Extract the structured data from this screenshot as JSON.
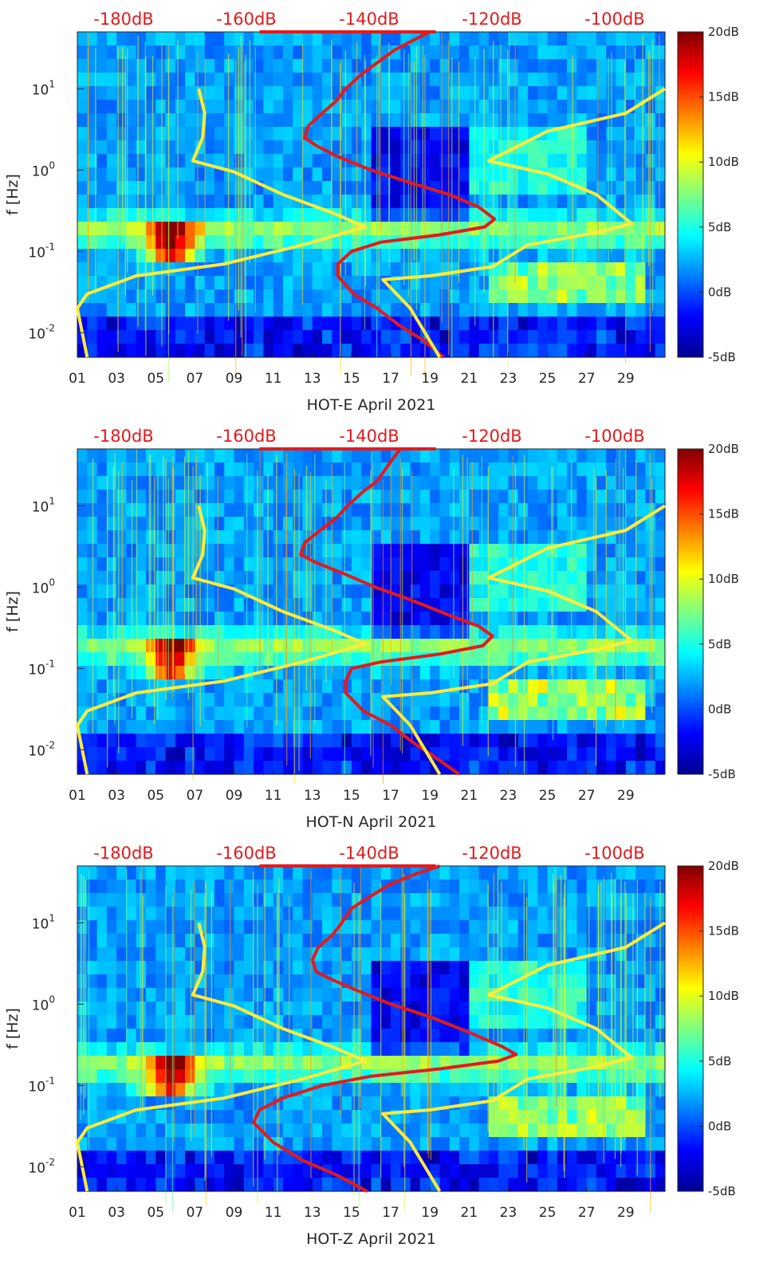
{
  "figure": {
    "colorbar": {
      "colormap": "jet",
      "range": [
        -5,
        20
      ],
      "ticks": [
        {
          "value": 20,
          "label": "20dB"
        },
        {
          "value": 15,
          "label": "15dB"
        },
        {
          "value": 10,
          "label": "10dB"
        },
        {
          "value": 5,
          "label": "5dB"
        },
        {
          "value": 0,
          "label": "0dB"
        },
        {
          "value": -5,
          "label": "-5dB"
        }
      ]
    },
    "x_ticks": [
      "01",
      "03",
      "05",
      "07",
      "09",
      "11",
      "13",
      "15",
      "17",
      "19",
      "21",
      "23",
      "25",
      "27",
      "29"
    ],
    "y_ticks": [
      {
        "value": 10,
        "base": "10",
        "exp": "1"
      },
      {
        "value": 1,
        "base": "10",
        "exp": "0"
      },
      {
        "value": 0.1,
        "base": "10",
        "exp": "-1"
      },
      {
        "value": 0.01,
        "base": "10",
        "exp": "-2"
      }
    ],
    "ylabel": "f [Hz]",
    "top_axis_labels": [
      "-180dB",
      "-160dB",
      "-140dB",
      "-120dB",
      "-100dB"
    ],
    "colors": {
      "yellow_curve": "#ffeb3b",
      "red_curve": "#e31a1c",
      "db_text": "#e31a1c"
    }
  },
  "chart_data": [
    {
      "type": "heatmap",
      "title": "",
      "xlabel": "HOT-E April 2021",
      "ylabel": "f [Hz]",
      "xlim": [
        1,
        31
      ],
      "ylim": [
        0.005,
        50
      ],
      "yscale": "log",
      "colorbar": {
        "label": "",
        "range_dB": [
          -5,
          20
        ]
      },
      "top_axis": {
        "labels": [
          "-180dB",
          "-160dB",
          "-140dB",
          "-120dB",
          "-100dB"
        ],
        "range_dB": [
          -185,
          -95
        ]
      },
      "series": [
        {
          "color": "yellow",
          "points": [
            [
              7.2,
              10
            ],
            [
              7.5,
              5
            ],
            [
              7.4,
              2.5
            ],
            [
              6.9,
              1.3
            ],
            [
              9,
              0.95
            ],
            [
              11.5,
              0.5
            ],
            [
              14,
              0.3
            ],
            [
              15.7,
              0.2
            ],
            [
              12.5,
              0.12
            ],
            [
              8.5,
              0.07
            ],
            [
              4,
              0.05
            ],
            [
              1.5,
              0.03
            ],
            [
              1,
              0.02
            ],
            [
              1.5,
              0.005
            ]
          ]
        },
        {
          "color": "red",
          "points": [
            [
              19,
              50
            ],
            [
              18.2,
              40
            ],
            [
              17.2,
              30
            ],
            [
              16.2,
              20
            ],
            [
              15.5,
              15
            ],
            [
              14.7,
              10
            ],
            [
              14.2,
              7
            ],
            [
              13.5,
              5
            ],
            [
              12.8,
              3.5
            ],
            [
              12.6,
              2.5
            ],
            [
              13.2,
              2
            ],
            [
              14.2,
              1.5
            ],
            [
              16,
              1
            ],
            [
              18,
              0.7
            ],
            [
              20,
              0.5
            ],
            [
              21.5,
              0.35
            ],
            [
              22.3,
              0.25
            ],
            [
              21.8,
              0.2
            ],
            [
              19.5,
              0.16
            ],
            [
              16.5,
              0.13
            ],
            [
              15,
              0.1
            ],
            [
              14.3,
              0.07
            ],
            [
              14.3,
              0.05
            ],
            [
              15.1,
              0.03
            ],
            [
              16.3,
              0.02
            ],
            [
              17.5,
              0.012
            ],
            [
              18.7,
              0.008
            ],
            [
              19.7,
              0.005
            ]
          ]
        },
        {
          "color": "red",
          "points": [
            [
              10.3,
              50
            ],
            [
              19.3,
              50
            ]
          ]
        },
        {
          "color": "yellow",
          "points": [
            [
              31,
              10
            ],
            [
              29,
              5
            ],
            [
              25,
              3
            ],
            [
              22,
              1.3
            ],
            [
              25,
              0.9
            ],
            [
              27.5,
              0.5
            ],
            [
              29.3,
              0.22
            ],
            [
              27.5,
              0.17
            ],
            [
              24,
              0.12
            ],
            [
              22.2,
              0.065
            ],
            [
              19,
              0.05
            ],
            [
              16.6,
              0.045
            ],
            [
              18,
              0.02
            ],
            [
              19.5,
              0.005
            ]
          ]
        }
      ]
    },
    {
      "type": "heatmap",
      "title": "",
      "xlabel": "HOT-N April 2021",
      "ylabel": "f [Hz]",
      "xlim": [
        1,
        31
      ],
      "ylim": [
        0.005,
        50
      ],
      "yscale": "log",
      "colorbar": {
        "label": "",
        "range_dB": [
          -5,
          20
        ]
      },
      "top_axis": {
        "labels": [
          "-180dB",
          "-160dB",
          "-140dB",
          "-120dB",
          "-100dB"
        ],
        "range_dB": [
          -185,
          -95
        ]
      },
      "series": [
        {
          "color": "yellow",
          "points": [
            [
              7.2,
              10
            ],
            [
              7.5,
              5
            ],
            [
              7.4,
              2.5
            ],
            [
              6.9,
              1.3
            ],
            [
              9,
              0.95
            ],
            [
              11.5,
              0.5
            ],
            [
              14,
              0.3
            ],
            [
              15.7,
              0.2
            ],
            [
              12.5,
              0.12
            ],
            [
              8.5,
              0.07
            ],
            [
              4,
              0.05
            ],
            [
              1.5,
              0.03
            ],
            [
              1,
              0.02
            ],
            [
              1.5,
              0.005
            ]
          ]
        },
        {
          "color": "red",
          "points": [
            [
              17.5,
              50
            ],
            [
              17,
              35
            ],
            [
              16.3,
              20
            ],
            [
              15.6,
              15
            ],
            [
              14.8,
              10
            ],
            [
              14.2,
              7
            ],
            [
              13.4,
              5
            ],
            [
              12.6,
              3.5
            ],
            [
              12.4,
              2.5
            ],
            [
              13.2,
              2
            ],
            [
              14.5,
              1.5
            ],
            [
              16.2,
              1
            ],
            [
              18,
              0.7
            ],
            [
              20,
              0.45
            ],
            [
              21.5,
              0.33
            ],
            [
              22.2,
              0.25
            ],
            [
              21.7,
              0.19
            ],
            [
              19.5,
              0.15
            ],
            [
              16.5,
              0.12
            ],
            [
              15,
              0.1
            ],
            [
              14.7,
              0.07
            ],
            [
              14.7,
              0.05
            ],
            [
              15.6,
              0.03
            ],
            [
              17,
              0.02
            ],
            [
              18.2,
              0.012
            ],
            [
              19.3,
              0.008
            ],
            [
              20.5,
              0.005
            ]
          ]
        },
        {
          "color": "red",
          "points": [
            [
              10.3,
              50
            ],
            [
              19.3,
              50
            ]
          ]
        },
        {
          "color": "yellow",
          "points": [
            [
              31,
              10
            ],
            [
              29,
              5
            ],
            [
              25,
              3
            ],
            [
              22,
              1.3
            ],
            [
              25,
              0.9
            ],
            [
              27.5,
              0.5
            ],
            [
              29.3,
              0.22
            ],
            [
              27.5,
              0.17
            ],
            [
              24,
              0.12
            ],
            [
              22.2,
              0.065
            ],
            [
              19,
              0.05
            ],
            [
              16.6,
              0.045
            ],
            [
              18,
              0.02
            ],
            [
              19.5,
              0.005
            ]
          ]
        }
      ]
    },
    {
      "type": "heatmap",
      "title": "",
      "xlabel": "HOT-Z April 2021",
      "ylabel": "f [Hz]",
      "xlim": [
        1,
        31
      ],
      "ylim": [
        0.005,
        50
      ],
      "yscale": "log",
      "colorbar": {
        "label": "",
        "range_dB": [
          -5,
          20
        ]
      },
      "top_axis": {
        "labels": [
          "-180dB",
          "-160dB",
          "-140dB",
          "-120dB",
          "-100dB"
        ],
        "range_dB": [
          -185,
          -95
        ]
      },
      "series": [
        {
          "color": "yellow",
          "points": [
            [
              7.2,
              10
            ],
            [
              7.5,
              5
            ],
            [
              7.4,
              2.5
            ],
            [
              6.9,
              1.3
            ],
            [
              9,
              0.95
            ],
            [
              11.5,
              0.5
            ],
            [
              14,
              0.3
            ],
            [
              15.7,
              0.2
            ],
            [
              12.5,
              0.12
            ],
            [
              8.5,
              0.07
            ],
            [
              4,
              0.05
            ],
            [
              1.5,
              0.03
            ],
            [
              1,
              0.02
            ],
            [
              1.5,
              0.005
            ]
          ]
        },
        {
          "color": "red",
          "points": [
            [
              19.5,
              50
            ],
            [
              18.3,
              40
            ],
            [
              17,
              30
            ],
            [
              15.8,
              20
            ],
            [
              15,
              15
            ],
            [
              14.5,
              10
            ],
            [
              14,
              7
            ],
            [
              13.3,
              5
            ],
            [
              13,
              3.5
            ],
            [
              13.2,
              2.5
            ],
            [
              14,
              2
            ],
            [
              15.2,
              1.5
            ],
            [
              17,
              1
            ],
            [
              19,
              0.7
            ],
            [
              21,
              0.45
            ],
            [
              22.7,
              0.3
            ],
            [
              23.4,
              0.24
            ],
            [
              22.5,
              0.2
            ],
            [
              19.5,
              0.16
            ],
            [
              16,
              0.13
            ],
            [
              13.5,
              0.1
            ],
            [
              11.5,
              0.07
            ],
            [
              10.3,
              0.05
            ],
            [
              10,
              0.035
            ],
            [
              11,
              0.02
            ],
            [
              12.5,
              0.012
            ],
            [
              14.2,
              0.008
            ],
            [
              15.8,
              0.005
            ]
          ]
        },
        {
          "color": "red",
          "points": [
            [
              10.3,
              50
            ],
            [
              19.3,
              50
            ]
          ]
        },
        {
          "color": "yellow",
          "points": [
            [
              31,
              10
            ],
            [
              29,
              5
            ],
            [
              25,
              3
            ],
            [
              22,
              1.3
            ],
            [
              25,
              0.9
            ],
            [
              27.5,
              0.5
            ],
            [
              29.3,
              0.22
            ],
            [
              27.5,
              0.17
            ],
            [
              24,
              0.12
            ],
            [
              22.2,
              0.065
            ],
            [
              19,
              0.05
            ],
            [
              16.6,
              0.045
            ],
            [
              18,
              0.02
            ],
            [
              19.5,
              0.005
            ]
          ]
        }
      ]
    }
  ]
}
